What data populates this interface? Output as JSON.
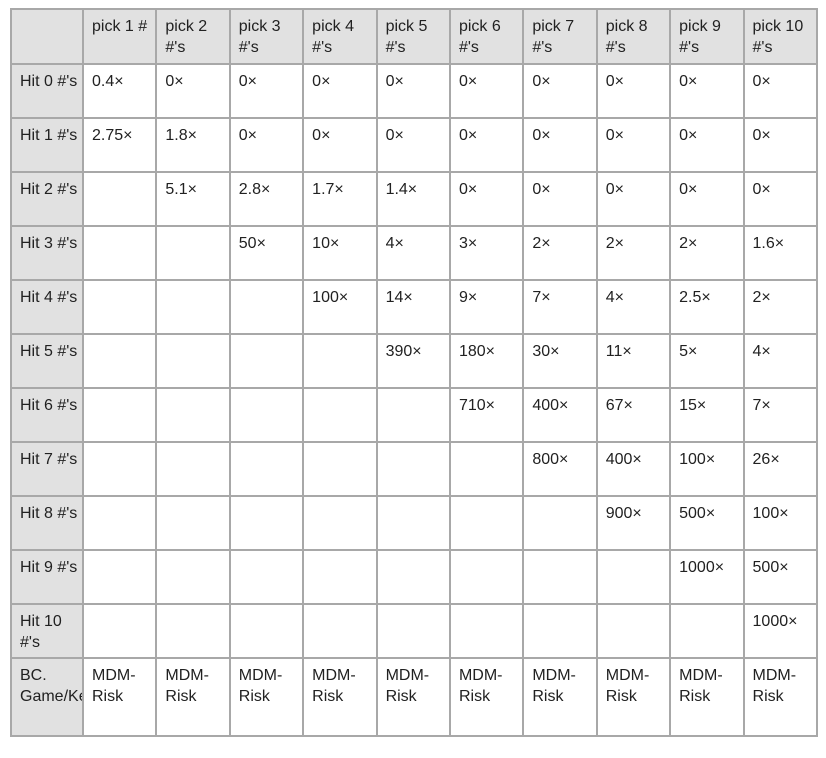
{
  "table": {
    "corner_label": "",
    "columns": [
      "pick 1 #",
      "pick 2 #'s",
      "pick 3 #'s",
      "pick 4 #'s",
      "pick 5 #'s",
      "pick 6 #'s",
      "pick 7 #'s",
      "pick 8 #'s",
      "pick 9 #'s",
      "pick 10 #'s"
    ],
    "rows": [
      {
        "label": "Hit 0 #'s",
        "cells": [
          "0.4×",
          "0×",
          "0×",
          "0×",
          "0×",
          "0×",
          "0×",
          "0×",
          "0×",
          "0×"
        ]
      },
      {
        "label": "Hit 1 #'s",
        "cells": [
          "2.75×",
          "1.8×",
          "0×",
          "0×",
          "0×",
          "0×",
          "0×",
          "0×",
          "0×",
          "0×"
        ]
      },
      {
        "label": "Hit 2 #'s",
        "cells": [
          "",
          "5.1×",
          "2.8×",
          "1.7×",
          "1.4×",
          "0×",
          "0×",
          "0×",
          "0×",
          "0×"
        ]
      },
      {
        "label": "Hit 3 #'s",
        "cells": [
          "",
          "",
          "50×",
          "10×",
          "4×",
          "3×",
          "2×",
          "2×",
          "2×",
          "1.6×"
        ]
      },
      {
        "label": "Hit 4 #'s",
        "cells": [
          "",
          "",
          "",
          "100×",
          "14×",
          "9×",
          "7×",
          "4×",
          "2.5×",
          "2×"
        ]
      },
      {
        "label": "Hit 5 #'s",
        "cells": [
          "",
          "",
          "",
          "",
          "390×",
          "180×",
          "30×",
          "11×",
          "5×",
          "4×"
        ]
      },
      {
        "label": "Hit 6 #'s",
        "cells": [
          "",
          "",
          "",
          "",
          "",
          "710×",
          "400×",
          "67×",
          "15×",
          "7×"
        ]
      },
      {
        "label": "Hit 7 #'s",
        "cells": [
          "",
          "",
          "",
          "",
          "",
          "",
          "800×",
          "400×",
          "100×",
          "26×"
        ]
      },
      {
        "label": "Hit 8 #'s",
        "cells": [
          "",
          "",
          "",
          "",
          "",
          "",
          "",
          "900×",
          "500×",
          "100×"
        ]
      },
      {
        "label": "Hit 9 #'s",
        "cells": [
          "",
          "",
          "",
          "",
          "",
          "",
          "",
          "",
          "1000×",
          "500×"
        ]
      },
      {
        "label": "Hit 10 #'s",
        "cells": [
          "",
          "",
          "",
          "",
          "",
          "",
          "",
          "",
          "",
          "1000×"
        ]
      },
      {
        "label": "BC. Game/Keno",
        "cells": [
          "MDM-Risk",
          "MDM-Risk",
          "MDM-Risk",
          "MDM-Risk",
          "MDM-Risk",
          "MDM-Risk",
          "MDM-Risk",
          "MDM-Risk",
          "MDM-Risk",
          "MDM-Risk"
        ],
        "footer": true
      }
    ],
    "colors": {
      "header_bg": "#e1e1e1",
      "cell_bg": "#ffffff",
      "border": "#a8a8a8",
      "text": "#212121"
    }
  }
}
